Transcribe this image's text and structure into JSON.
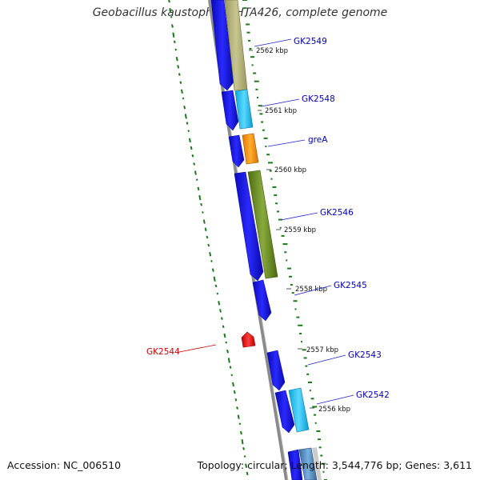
{
  "title": "Geobacillus kaustophilus HTA426, complete genome",
  "accession": "Accession: NC_006510",
  "topology": "Topology: circular; Length: 3,544,776 bp; Genes: 3,611",
  "colors": {
    "forward_arrow": "#1010d8",
    "reverse_label": "#cc0000",
    "forward_label": "#0000b0",
    "backbone": "#8a8a8a",
    "gc_ticks": "#1a7a1a"
  },
  "kbp_ticks": [
    "2562 kbp",
    "2561 kbp",
    "2560 kbp",
    "2559 kbp",
    "2558 kbp",
    "2557 kbp",
    "2556 kbp"
  ],
  "genes": [
    {
      "name": "GK2549",
      "strand": "forward",
      "color": "#b6b47c"
    },
    {
      "name": "GK2548",
      "strand": "forward",
      "color": "#22c4ec"
    },
    {
      "name": "greA",
      "strand": "forward",
      "color": "#ff9a0a"
    },
    {
      "name": "GK2546",
      "strand": "forward",
      "color": "#6b8e23"
    },
    {
      "name": "GK2545",
      "strand": "forward",
      "color": ""
    },
    {
      "name": "GK2544",
      "strand": "reverse",
      "color": "#ee1111"
    },
    {
      "name": "GK2543",
      "strand": "forward",
      "color": ""
    },
    {
      "name": "GK2542",
      "strand": "forward",
      "color": "#22c4ec"
    }
  ]
}
